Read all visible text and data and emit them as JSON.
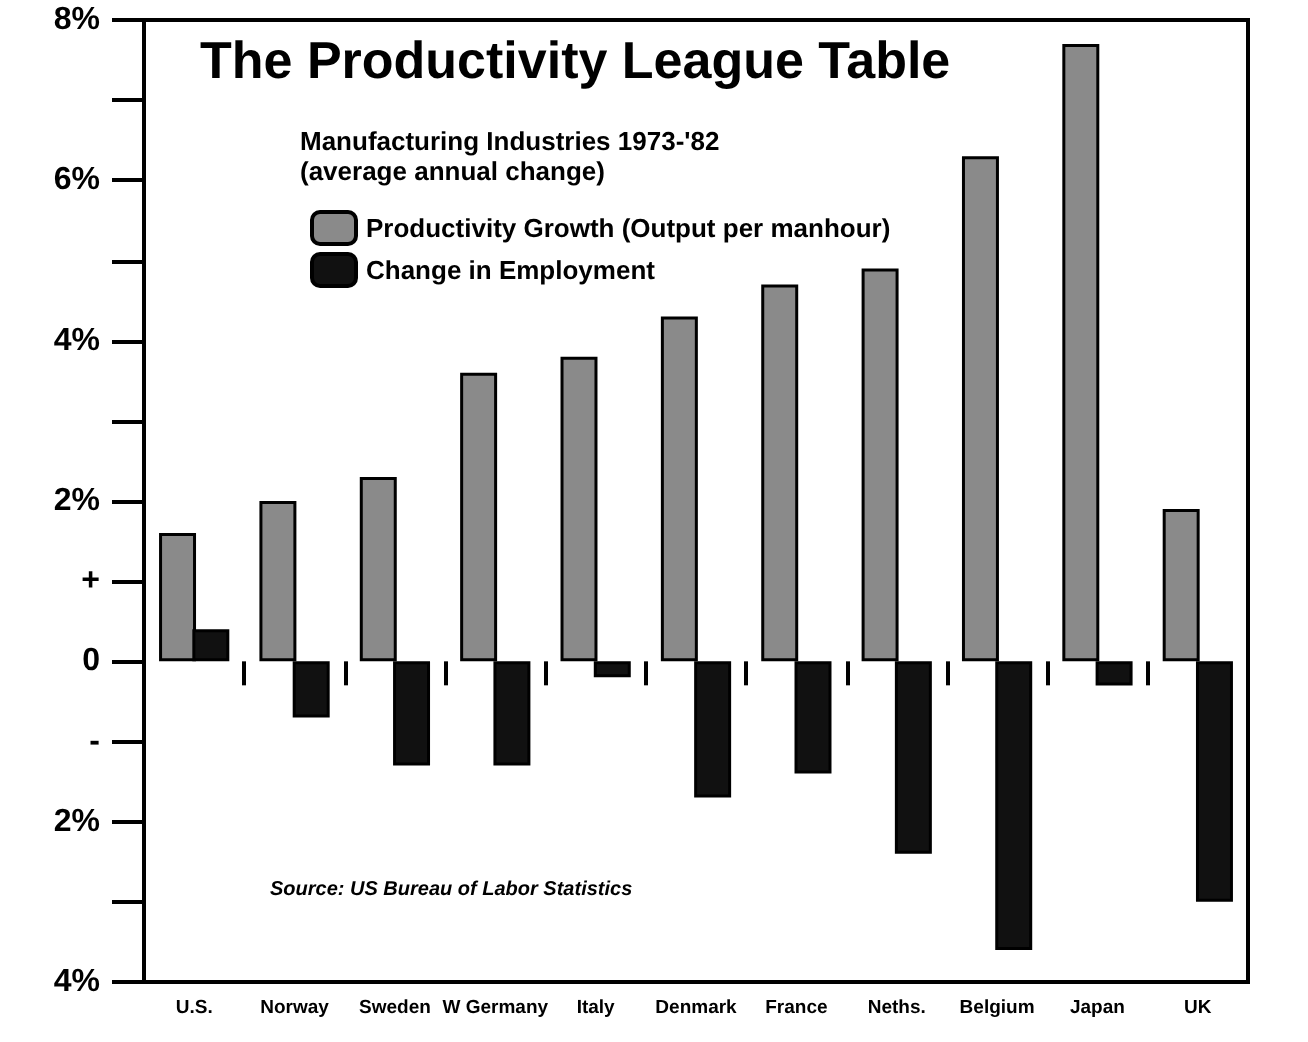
{
  "chart_data": {
    "type": "bar",
    "title": "The Productivity League Table",
    "subtitle": "Manufacturing Industries 1973-'82\n(average annual change)",
    "categories": [
      "U.S.",
      "Norway",
      "Sweden",
      "W Germany",
      "Italy",
      "Denmark",
      "France",
      "Neths.",
      "Belgium",
      "Japan",
      "UK"
    ],
    "series": [
      {
        "name": "Productivity Growth (Output per manhour)",
        "color": "#8a8a8a",
        "values": [
          1.6,
          2.0,
          2.3,
          3.6,
          3.8,
          4.3,
          4.7,
          4.9,
          6.3,
          7.7,
          1.9
        ]
      },
      {
        "name": "Change in Employment",
        "color": "#111111",
        "values": [
          0.4,
          -0.7,
          -1.3,
          -1.3,
          -0.2,
          -1.7,
          -1.4,
          -2.4,
          -3.6,
          -0.3,
          -3.0
        ]
      }
    ],
    "ylim": [
      -4,
      8
    ],
    "yticks": [
      {
        "value": -4,
        "label": "4%"
      },
      {
        "value": -3,
        "label": null
      },
      {
        "value": -2,
        "label": "2%"
      },
      {
        "value": -1,
        "label": "-"
      },
      {
        "value": 0,
        "label": "0"
      },
      {
        "value": 1,
        "label": "+"
      },
      {
        "value": 2,
        "label": "2%"
      },
      {
        "value": 3,
        "label": null
      },
      {
        "value": 4,
        "label": "4%"
      },
      {
        "value": 5,
        "label": null
      },
      {
        "value": 6,
        "label": "6%"
      },
      {
        "value": 7,
        "label": null
      },
      {
        "value": 8,
        "label": "8%"
      }
    ],
    "annotations": [
      "Source: US Bureau of Labor Statistics"
    ],
    "legend": "top left",
    "grid": false
  }
}
